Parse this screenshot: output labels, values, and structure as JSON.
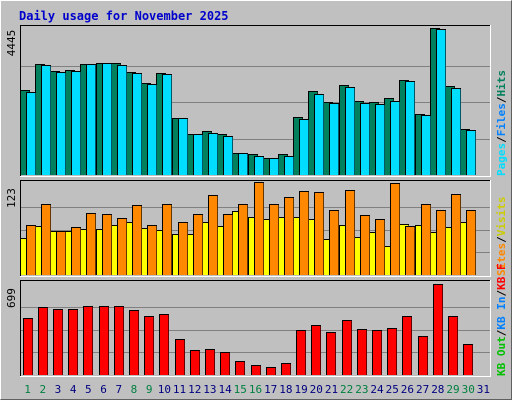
{
  "chart_data": {
    "type": "bar",
    "title": "Daily usage for November 2025",
    "categories": [
      "1",
      "2",
      "3",
      "4",
      "5",
      "6",
      "7",
      "8",
      "9",
      "10",
      "11",
      "12",
      "13",
      "14",
      "15",
      "16",
      "17",
      "18",
      "19",
      "20",
      "21",
      "22",
      "23",
      "24",
      "25",
      "26",
      "27",
      "28",
      "29",
      "30",
      "31"
    ],
    "weekend_color": "#008040",
    "weekday_color": "#000080",
    "weekend_days": [
      "1",
      "2",
      "8",
      "9",
      "15",
      "16",
      "22",
      "23",
      "29",
      "30"
    ],
    "panels": [
      {
        "ymax_label": "4445",
        "ylim": [
          0,
          4445
        ],
        "series": [
          {
            "name": "Hits",
            "color": "#00805c",
            "values": [
              2580,
              3370,
              3180,
              3190,
              3390,
              3410,
              3400,
              3140,
              2800,
              3120,
              1750,
              1240,
              1330,
              1250,
              680,
              630,
              520,
              640,
              1760,
              2560,
              2230,
              2730,
              2240,
              2210,
              2350,
              2880,
              1860,
              4470,
              2700,
              1410,
              0
            ]
          },
          {
            "name": "Files",
            "color": "#0080ff",
            "values": [
              0,
              0,
              0,
              0,
              0,
              0,
              0,
              0,
              0,
              0,
              0,
              0,
              0,
              0,
              0,
              0,
              0,
              0,
              0,
              0,
              0,
              0,
              0,
              0,
              0,
              0,
              0,
              0,
              0,
              0,
              0
            ]
          },
          {
            "name": "Pages",
            "color": "#00ddff",
            "values": [
              2540,
              3340,
              3140,
              3160,
              3390,
              3400,
              3360,
              3100,
              2780,
              3070,
              1740,
              1240,
              1280,
              1200,
              660,
              580,
              510,
              590,
              1710,
              2480,
              2180,
              2690,
              2200,
              2160,
              2260,
              2850,
              1820,
              4430,
              2640,
              1380,
              0
            ]
          }
        ],
        "legend": [
          {
            "text": "Hits",
            "color": "#00805c"
          },
          {
            "text": "/",
            "color": "#000000"
          },
          {
            "text": "Files",
            "color": "#0080ff"
          },
          {
            "text": "/",
            "color": "#000000"
          },
          {
            "text": "Pages",
            "color": "#00ddff"
          }
        ]
      },
      {
        "ymax_label": "123",
        "ylim": [
          0,
          123
        ],
        "series": [
          {
            "name": "Visits",
            "color": "#ffff00",
            "values": [
              50,
              66,
              59,
              60,
              62,
              62,
              68,
              71,
              64,
              61,
              56,
              55,
              72,
              66,
              86,
              79,
              76,
              78,
              79,
              76,
              49,
              68,
              51,
              58,
              39,
              69,
              68,
              58,
              65,
              71,
              0
            ]
          },
          {
            "name": "Sites",
            "color": "#ff8800",
            "values": [
              68,
              96,
              60,
              65,
              84,
              82,
              77,
              95,
              68,
              96,
              71,
              83,
              108,
              82,
              96,
              126,
              96,
              106,
              113,
              112,
              88,
              115,
              81,
              76,
              124,
              66,
              96,
              88,
              110,
              88,
              0
            ]
          }
        ],
        "legend": [
          {
            "text": "Visits",
            "color": "#cccc00"
          },
          {
            "text": "/",
            "color": "#000000"
          },
          {
            "text": "Sites",
            "color": "#ff8800"
          }
        ]
      },
      {
        "ymax_label": "699",
        "ylim": [
          0,
          699
        ],
        "series": [
          {
            "name": "KB F",
            "color": "#ff0000",
            "values": [
              440,
              520,
              505,
              505,
              530,
              530,
              530,
              500,
              450,
              465,
              280,
              195,
              200,
              180,
              105,
              75,
              65,
              90,
              345,
              385,
              330,
              425,
              350,
              345,
              360,
              450,
              300,
              700,
              450,
              240,
              0
            ]
          }
        ],
        "legend": [
          {
            "text": "KB F",
            "color": "#ff0000"
          },
          {
            "text": "/",
            "color": "#000000"
          },
          {
            "text": "KB In",
            "color": "#0080ff"
          },
          {
            "text": "/",
            "color": "#000000"
          },
          {
            "text": "KB Out",
            "color": "#00c000"
          }
        ]
      }
    ]
  }
}
